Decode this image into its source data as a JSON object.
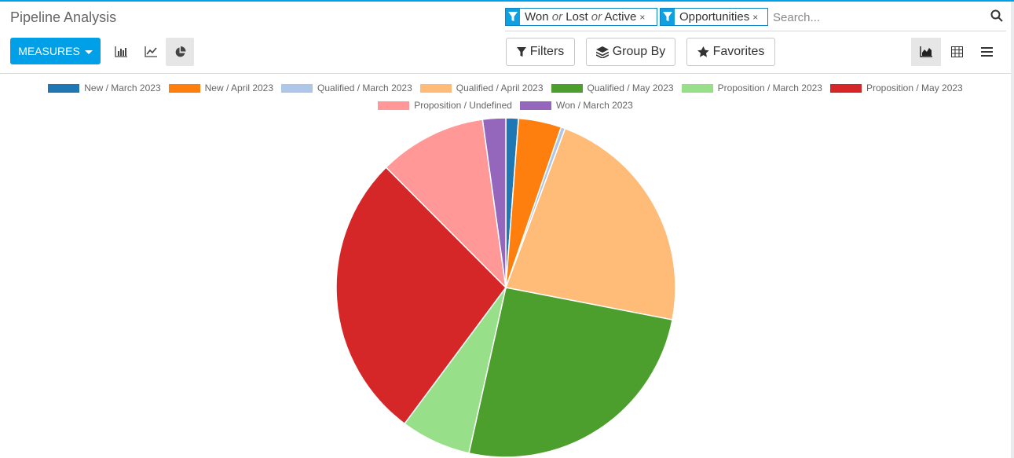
{
  "title": "Pipeline Analysis",
  "search": {
    "placeholder": "Search...",
    "facets": [
      {
        "parts": [
          "Won",
          "or",
          "Lost",
          "or",
          "Active"
        ]
      },
      {
        "parts": [
          "Opportunities"
        ]
      }
    ],
    "close_glyph": "×"
  },
  "toolbar": {
    "measures_label": "MEASURES",
    "chart_types": [
      "bar-chart-icon",
      "line-chart-icon",
      "pie-chart-icon"
    ],
    "active_chart_type": "pie",
    "filters_label": "Filters",
    "group_by_label": "Group By",
    "favorites_label": "Favorites",
    "views": [
      "graph-view-icon",
      "pivot-view-icon",
      "list-view-icon"
    ],
    "active_view": "graph"
  },
  "chart_data": {
    "type": "pie",
    "slices": [
      {
        "label": "New / March 2023",
        "value": 1.2,
        "color": "#1f77b4"
      },
      {
        "label": "New / April 2023",
        "value": 4.1,
        "color": "#ff7f0e"
      },
      {
        "label": "Qualified / March 2023",
        "value": 0.4,
        "color": "#aec7e8"
      },
      {
        "label": "Qualified / April 2023",
        "value": 22.4,
        "color": "#ffbb78"
      },
      {
        "label": "Qualified / May 2023",
        "value": 25.5,
        "color": "#4d9f2d"
      },
      {
        "label": "Proposition / March 2023",
        "value": 6.7,
        "color": "#98df8a"
      },
      {
        "label": "Proposition / May 2023",
        "value": 27.4,
        "color": "#d62728"
      },
      {
        "label": "Proposition / Undefined",
        "value": 10.3,
        "color": "#ff9896"
      },
      {
        "label": "Won / March 2023",
        "value": 2.2,
        "color": "#9467bd"
      }
    ],
    "legend_position": "top"
  }
}
